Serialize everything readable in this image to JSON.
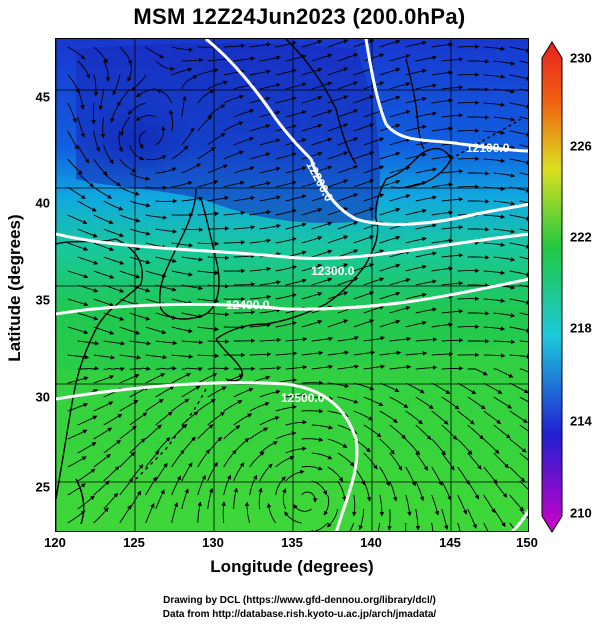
{
  "title": "MSM 12Z24Jun2023 (200.0hPa)",
  "axes": {
    "x_label": "Longitude (degrees)",
    "y_label": "Latitude  (degrees)",
    "x_ticks": [
      "120",
      "125",
      "130",
      "135",
      "140",
      "145",
      "150"
    ],
    "y_ticks": [
      "45",
      "40",
      "35",
      "30",
      "25"
    ],
    "x_range": [
      120,
      150
    ],
    "y_range": [
      22.4,
      47.6
    ]
  },
  "colorbar": {
    "ticks": [
      "230",
      "226",
      "222",
      "218",
      "214",
      "210"
    ],
    "range": [
      210,
      230
    ],
    "colors": [
      "#d000c8",
      "#2020d0",
      "#1ec8dc",
      "#20c840",
      "#dce020",
      "#f06010",
      "#e82020"
    ]
  },
  "contours": {
    "labels": [
      "12100.0",
      "12200.0",
      "12300.0",
      "12400.0",
      "12500.0"
    ],
    "color": "#ffffff"
  },
  "footer": {
    "line1": "Drawing by DCL (https://www.gfd-dennou.org/library/dcl/)",
    "line2": "Data from http://database.rish.kyoto-u.ac.jp/arch/jmadata/"
  }
}
